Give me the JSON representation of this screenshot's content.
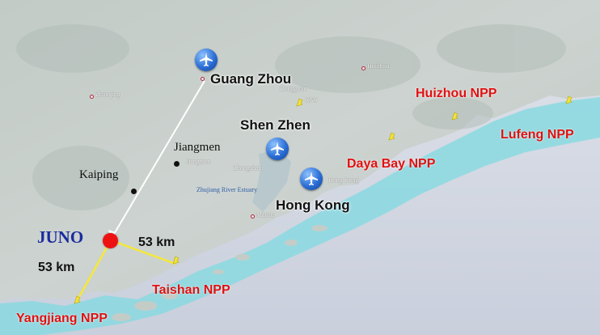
{
  "colors": {
    "land": "#c6cdc9",
    "sea": "#d9dde6",
    "coast_water": "#57c7d4",
    "npp_label": "#e01010",
    "juno_label": "#1b2b9e",
    "juno_marker": "#ee1111",
    "baseline_line": "#f5e838"
  },
  "labels": {
    "guangzhou": "Guang Zhou",
    "shenzhen": "Shen Zhen",
    "hongkong": "Hong Kong",
    "jiangmen": "Jiangmen",
    "kaiping": "Kaiping",
    "juno": "JUNO"
  },
  "npps": {
    "huizhou": "Huizhou NPP",
    "lufeng": "Lufeng NPP",
    "dayabay": "Daya Bay NPP",
    "taishan": "Taishan NPP",
    "yangjiang": "Yangjiang NPP"
  },
  "distances": {
    "taishan": "53 km",
    "yangjiang": "53 km"
  },
  "basemap_labels": {
    "zhaoqing": "Zhaoqing",
    "huizhou_city": "Huizhou",
    "dongguan": "Dongguan",
    "jiangmen_small": "Jiangmen",
    "zhongshan": "Zhongshan",
    "zhujiang": "Zhujiang River Estuary",
    "hongkong_small": "Hong Kong",
    "macau": "Macau",
    "cns": "CNS"
  },
  "icons": {
    "airport": "airplane-icon",
    "npp": "npp-pin-icon",
    "juno": "juno-marker"
  }
}
